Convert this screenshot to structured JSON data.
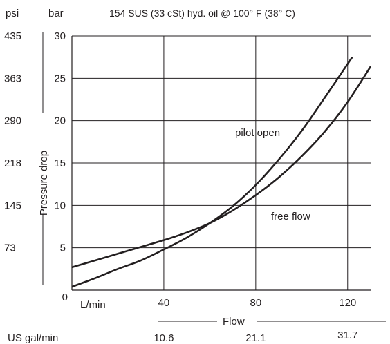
{
  "chart_data": {
    "type": "line",
    "title": "154 SUS (33 cSt) hyd. oil @ 100° F (38° C)",
    "xlabel": "Flow",
    "ylabel": "Pressure drop",
    "x_unit": "L/min",
    "y_unit": "bar",
    "secondary_y_unit": "psi",
    "secondary_x_unit": "US gal/min",
    "xlim": [
      0,
      130
    ],
    "ylim": [
      0,
      30
    ],
    "x_ticks": [
      0,
      40,
      80,
      120
    ],
    "x_tick_labels": [
      "0",
      "40",
      "80",
      "120"
    ],
    "y_ticks": [
      5,
      10,
      15,
      20,
      25,
      30
    ],
    "y_tick_labels": [
      "5",
      "10",
      "15",
      "20",
      "25",
      "30"
    ],
    "psi_ticks": [
      "73",
      "145",
      "218",
      "290",
      "363",
      "435"
    ],
    "gpm_ticks": [
      "10.6",
      "21.1",
      "31.7"
    ],
    "grid": true,
    "legend": "none",
    "series": [
      {
        "name": "pilot open",
        "x": [
          0,
          10,
          20,
          30,
          40,
          50,
          60,
          70,
          80,
          90,
          100,
          110,
          120,
          122
        ],
        "y": [
          0.4,
          1.4,
          2.5,
          3.5,
          4.8,
          6.2,
          7.9,
          9.9,
          12.4,
          15.4,
          18.8,
          22.7,
          26.7,
          27.5
        ]
      },
      {
        "name": "free flow",
        "x": [
          0,
          10,
          20,
          30,
          40,
          50,
          60,
          70,
          80,
          90,
          100,
          110,
          120,
          130
        ],
        "y": [
          2.7,
          3.5,
          4.3,
          5.1,
          5.9,
          6.8,
          7.9,
          9.4,
          11.2,
          13.3,
          15.8,
          18.7,
          22.2,
          26.4
        ]
      }
    ],
    "annotations": [
      "pilot open",
      "free flow"
    ]
  }
}
